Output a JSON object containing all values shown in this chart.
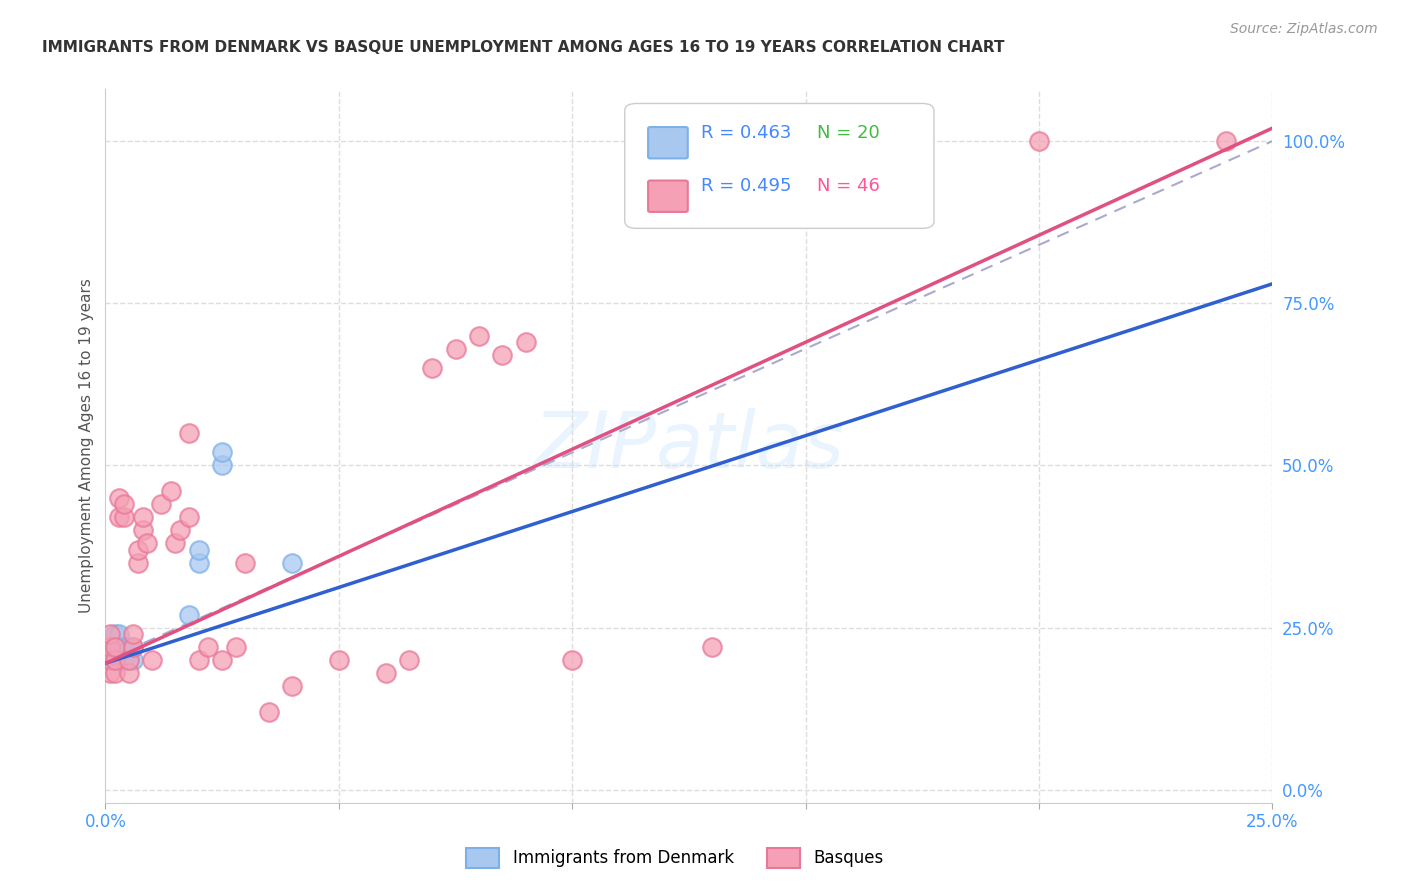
{
  "title": "IMMIGRANTS FROM DENMARK VS BASQUE UNEMPLOYMENT AMONG AGES 16 TO 19 YEARS CORRELATION CHART",
  "source": "Source: ZipAtlas.com",
  "ylabel": "Unemployment Among Ages 16 to 19 years",
  "legend_label1": "Immigrants from Denmark",
  "legend_label2": "Basques",
  "legend_r1": "R = 0.463",
  "legend_n1": "N = 20",
  "legend_r2": "R = 0.495",
  "legend_n2": "N = 46",
  "xlim": [
    0.0,
    0.25
  ],
  "ylim": [
    -0.02,
    1.08
  ],
  "yticks_right": [
    0.0,
    0.25,
    0.5,
    0.75,
    1.0
  ],
  "color_blue_fill": "#A8C8F0",
  "color_blue_edge": "#7EB0E8",
  "color_pink_fill": "#F5A0B5",
  "color_pink_edge": "#E87898",
  "color_blue_line": "#3060D0",
  "color_pink_line": "#E05080",
  "color_dashed": "#AAAACC",
  "color_axis_label": "#4499FF",
  "color_grid": "#DDDDDD",
  "blue_x": [
    0.001,
    0.001,
    0.002,
    0.002,
    0.002,
    0.003,
    0.003,
    0.003,
    0.004,
    0.004,
    0.005,
    0.005,
    0.006,
    0.006,
    0.018,
    0.02,
    0.02,
    0.025,
    0.025,
    0.04
  ],
  "blue_y": [
    0.2,
    0.22,
    0.2,
    0.22,
    0.24,
    0.2,
    0.22,
    0.24,
    0.2,
    0.22,
    0.2,
    0.22,
    0.2,
    0.22,
    0.27,
    0.35,
    0.37,
    0.5,
    0.52,
    0.35
  ],
  "pink_x": [
    0.001,
    0.001,
    0.001,
    0.001,
    0.002,
    0.002,
    0.002,
    0.003,
    0.003,
    0.004,
    0.004,
    0.005,
    0.005,
    0.006,
    0.006,
    0.007,
    0.007,
    0.008,
    0.008,
    0.009,
    0.01,
    0.012,
    0.014,
    0.015,
    0.016,
    0.018,
    0.018,
    0.02,
    0.022,
    0.025,
    0.028,
    0.03,
    0.035,
    0.04,
    0.05,
    0.06,
    0.065,
    0.07,
    0.075,
    0.08,
    0.085,
    0.09,
    0.1,
    0.13,
    0.2,
    0.24
  ],
  "pink_y": [
    0.18,
    0.2,
    0.22,
    0.24,
    0.18,
    0.2,
    0.22,
    0.42,
    0.45,
    0.42,
    0.44,
    0.18,
    0.2,
    0.22,
    0.24,
    0.35,
    0.37,
    0.4,
    0.42,
    0.38,
    0.2,
    0.44,
    0.46,
    0.38,
    0.4,
    0.42,
    0.55,
    0.2,
    0.22,
    0.2,
    0.22,
    0.35,
    0.12,
    0.16,
    0.2,
    0.18,
    0.2,
    0.65,
    0.68,
    0.7,
    0.67,
    0.69,
    0.2,
    0.22,
    1.0,
    1.0
  ],
  "blue_line_x": [
    0.0,
    0.25
  ],
  "blue_line_y": [
    0.195,
    0.78
  ],
  "pink_line_x": [
    0.0,
    0.25
  ],
  "pink_line_y": [
    0.195,
    1.02
  ],
  "dash_line_x": [
    0.0,
    0.25
  ],
  "dash_line_y": [
    0.2,
    1.0
  ],
  "background_color": "#FFFFFF"
}
